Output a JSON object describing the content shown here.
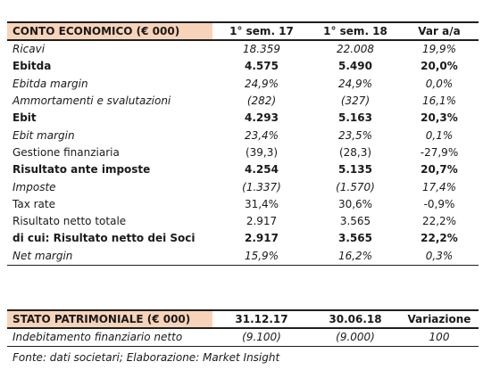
{
  "income": {
    "header": [
      "CONTO ECONOMICO (€ 000)",
      "1° sem. 17",
      "1° sem. 18",
      "Var a/a"
    ],
    "rows": [
      {
        "label": "Ricavi",
        "v1": "18.359",
        "v2": "22.008",
        "v3": "19,9%",
        "style": "ital"
      },
      {
        "label": "Ebitda",
        "v1": "4.575",
        "v2": "5.490",
        "v3": "20,0%",
        "style": "bold"
      },
      {
        "label": "Ebitda margin",
        "v1": "24,9%",
        "v2": "24,9%",
        "v3": "0,0%",
        "style": "ital"
      },
      {
        "label": "Ammortamenti e svalutazioni",
        "v1": "(282)",
        "v2": "(327)",
        "v3": "16,1%",
        "style": "ital"
      },
      {
        "label": "Ebit",
        "v1": "4.293",
        "v2": "5.163",
        "v3": "20,3%",
        "style": "bold"
      },
      {
        "label": "Ebit margin",
        "v1": "23,4%",
        "v2": "23,5%",
        "v3": "0,1%",
        "style": "ital"
      },
      {
        "label": "Gestione finanziaria",
        "v1": "(39,3)",
        "v2": "(28,3)",
        "v3": "-27,9%",
        "style": "plain"
      },
      {
        "label": "Risultato ante imposte",
        "v1": "4.254",
        "v2": "5.135",
        "v3": "20,7%",
        "style": "bold"
      },
      {
        "label": "Imposte",
        "v1": "(1.337)",
        "v2": "(1.570)",
        "v3": "17,4%",
        "style": "ital"
      },
      {
        "label": "Tax rate",
        "v1": "31,4%",
        "v2": "30,6%",
        "v3": "-0,9%",
        "style": "plain"
      },
      {
        "label": "Risultato netto totale",
        "v1": "2.917",
        "v2": "3.565",
        "v3": "22,2%",
        "style": "plain"
      },
      {
        "label": "di cui: Risultato netto dei Soci",
        "v1": "2.917",
        "v2": "3.565",
        "v3": "22,2%",
        "style": "bold"
      },
      {
        "label": "Net margin",
        "v1": "15,9%",
        "v2": "16,2%",
        "v3": "0,3%",
        "style": "ital"
      }
    ]
  },
  "balance": {
    "header": [
      "STATO PATRIMONIALE (€ 000)",
      "31.12.17",
      "30.06.18",
      "Variazione"
    ],
    "rows": [
      {
        "label": "Indebitamento finanziario netto",
        "v1": "(9.100)",
        "v2": "(9.000)",
        "v3": "100",
        "style": "ital"
      }
    ]
  },
  "footer": "Fonte: dati societari; Elaborazione: Market Insight",
  "colors": {
    "header_bg": "#f7d3b9"
  }
}
